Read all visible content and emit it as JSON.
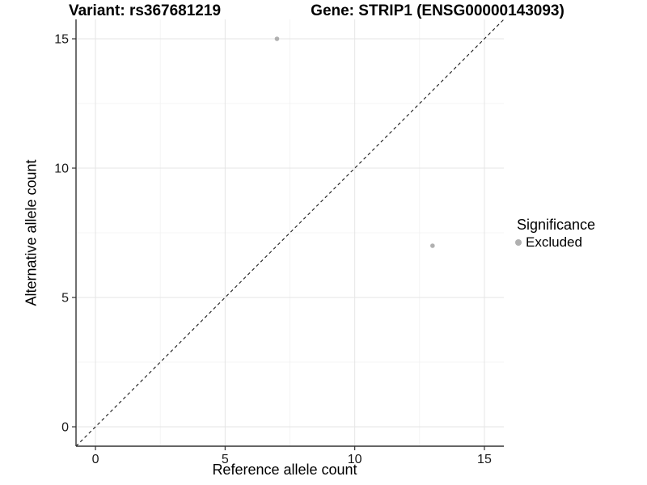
{
  "title": {
    "variant": "Variant: rs367681219",
    "gene": "Gene: STRIP1 (ENSG00000143093)"
  },
  "axes": {
    "x": {
      "label": "Reference allele count",
      "ticks": [
        "0",
        "5",
        "10",
        "15"
      ],
      "tick_values": [
        0,
        5,
        10,
        15
      ]
    },
    "y": {
      "label": "Alternative allele count",
      "ticks": [
        "0",
        "5",
        "10",
        "15"
      ],
      "tick_values": [
        0,
        5,
        10,
        15
      ]
    }
  },
  "legend": {
    "title": "Significance",
    "items": [
      {
        "label": "Excluded",
        "color": "#b0b0b0"
      }
    ]
  },
  "chart_data": {
    "type": "scatter",
    "title": "Variant: rs367681219 | Gene: STRIP1 (ENSG00000143093)",
    "xlabel": "Reference allele count",
    "ylabel": "Alternative allele count",
    "series": [
      {
        "name": "Excluded",
        "color": "#b0b0b0",
        "points": [
          {
            "x": 7,
            "y": 15
          },
          {
            "x": 13,
            "y": 7
          }
        ]
      }
    ],
    "reference_line": {
      "type": "identity",
      "style": "dashed",
      "color": "#1a1a1a"
    },
    "xlim": [
      -0.75,
      15.75
    ],
    "ylim": [
      -0.75,
      15.75
    ],
    "major_gridlines": [
      0,
      5,
      10,
      15
    ],
    "minor_gridlines": [
      2.5,
      7.5,
      12.5
    ],
    "grid": true,
    "legend_position": "right",
    "colors": {
      "major_grid": "#e5e5e5",
      "minor_grid": "#f1f1f1",
      "axis_line": "#333333",
      "tick_text": "#1a1a1a",
      "point": "#b0b0b0"
    },
    "point_radius": 2.8
  }
}
